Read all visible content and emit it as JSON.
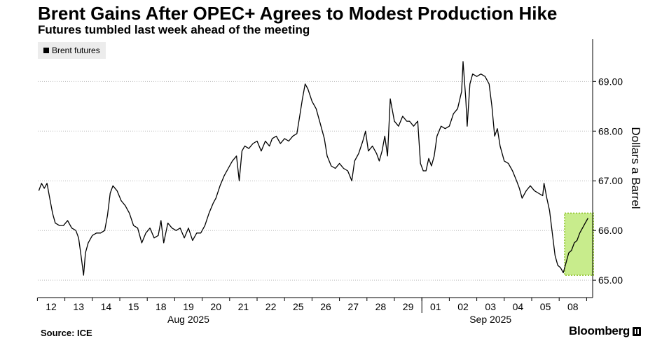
{
  "header": {
    "title": "Brent Gains After OPEC+ Agrees to Modest Production Hike",
    "subtitle": "Futures tumbled last week ahead of the meeting"
  },
  "footer": {
    "source": "Source: ICE",
    "brand": "Bloomberg"
  },
  "colors": {
    "line": "#000000",
    "highlight_fill": "#c8ec8c",
    "highlight_border": "#88c020",
    "grid": "#bbbbbb"
  },
  "chart_data": {
    "type": "line",
    "title": "Brent Gains After OPEC+ Agrees to Modest Production Hike",
    "subtitle": "Futures tumbled last week ahead of the meeting",
    "ylabel": "Dollars a Barrel",
    "ylim": [
      64.65,
      69.85
    ],
    "yticks": [
      65.0,
      66.0,
      67.0,
      68.0,
      69.0
    ],
    "ytick_labels": [
      "65.00",
      "66.00",
      "67.00",
      "68.00",
      "69.00"
    ],
    "grid": "horizontal-dotted",
    "x_categories": [
      "12",
      "13",
      "14",
      "15",
      "18",
      "19",
      "20",
      "21",
      "22",
      "25",
      "26",
      "27",
      "28",
      "29",
      "01",
      "02",
      "03",
      "04",
      "05",
      "08"
    ],
    "month_labels": [
      {
        "label": "Aug 2025",
        "at": "19"
      },
      {
        "label": "Sep 2025",
        "at": "03"
      }
    ],
    "legend": [
      {
        "name": "Brent futures",
        "position": "top-left"
      }
    ],
    "highlight": {
      "x_start": 18.7,
      "x_end": 19.75,
      "y_min": 65.1,
      "y_max": 66.35
    },
    "series": [
      {
        "name": "Brent futures",
        "points": [
          [
            -0.45,
            66.8
          ],
          [
            -0.35,
            66.95
          ],
          [
            -0.25,
            66.85
          ],
          [
            -0.15,
            66.95
          ],
          [
            -0.05,
            66.65
          ],
          [
            0.05,
            66.35
          ],
          [
            0.15,
            66.15
          ],
          [
            0.3,
            66.1
          ],
          [
            0.45,
            66.1
          ],
          [
            0.6,
            66.2
          ],
          [
            0.75,
            66.05
          ],
          [
            0.9,
            66.0
          ],
          [
            1.0,
            65.85
          ],
          [
            1.1,
            65.45
          ],
          [
            1.18,
            65.1
          ],
          [
            1.25,
            65.55
          ],
          [
            1.35,
            65.75
          ],
          [
            1.5,
            65.9
          ],
          [
            1.65,
            65.95
          ],
          [
            1.8,
            65.95
          ],
          [
            1.95,
            66.0
          ],
          [
            2.05,
            66.3
          ],
          [
            2.15,
            66.75
          ],
          [
            2.25,
            66.9
          ],
          [
            2.4,
            66.8
          ],
          [
            2.55,
            66.6
          ],
          [
            2.7,
            66.5
          ],
          [
            2.85,
            66.35
          ],
          [
            3.0,
            66.1
          ],
          [
            3.15,
            66.05
          ],
          [
            3.3,
            65.75
          ],
          [
            3.45,
            65.95
          ],
          [
            3.6,
            66.05
          ],
          [
            3.75,
            65.85
          ],
          [
            3.9,
            65.9
          ],
          [
            4.0,
            66.2
          ],
          [
            4.1,
            65.75
          ],
          [
            4.25,
            66.15
          ],
          [
            4.4,
            66.05
          ],
          [
            4.55,
            66.0
          ],
          [
            4.7,
            66.05
          ],
          [
            4.85,
            65.85
          ],
          [
            5.0,
            66.05
          ],
          [
            5.15,
            65.8
          ],
          [
            5.3,
            65.95
          ],
          [
            5.45,
            65.95
          ],
          [
            5.6,
            66.1
          ],
          [
            5.75,
            66.35
          ],
          [
            5.9,
            66.55
          ],
          [
            6.0,
            66.65
          ],
          [
            6.15,
            66.9
          ],
          [
            6.3,
            67.1
          ],
          [
            6.45,
            67.25
          ],
          [
            6.6,
            67.4
          ],
          [
            6.75,
            67.5
          ],
          [
            6.85,
            67.0
          ],
          [
            6.95,
            67.6
          ],
          [
            7.05,
            67.7
          ],
          [
            7.2,
            67.65
          ],
          [
            7.35,
            67.75
          ],
          [
            7.5,
            67.8
          ],
          [
            7.65,
            67.6
          ],
          [
            7.8,
            67.8
          ],
          [
            7.95,
            67.7
          ],
          [
            8.05,
            67.85
          ],
          [
            8.2,
            67.9
          ],
          [
            8.35,
            67.75
          ],
          [
            8.5,
            67.85
          ],
          [
            8.65,
            67.8
          ],
          [
            8.8,
            67.9
          ],
          [
            8.95,
            67.95
          ],
          [
            9.05,
            68.3
          ],
          [
            9.15,
            68.65
          ],
          [
            9.25,
            68.95
          ],
          [
            9.35,
            68.85
          ],
          [
            9.5,
            68.6
          ],
          [
            9.65,
            68.45
          ],
          [
            9.8,
            68.15
          ],
          [
            9.95,
            67.85
          ],
          [
            10.05,
            67.5
          ],
          [
            10.2,
            67.3
          ],
          [
            10.35,
            67.25
          ],
          [
            10.5,
            67.35
          ],
          [
            10.65,
            67.25
          ],
          [
            10.8,
            67.2
          ],
          [
            10.95,
            67.0
          ],
          [
            11.05,
            67.4
          ],
          [
            11.2,
            67.55
          ],
          [
            11.35,
            67.8
          ],
          [
            11.45,
            68.0
          ],
          [
            11.55,
            67.6
          ],
          [
            11.7,
            67.7
          ],
          [
            11.85,
            67.55
          ],
          [
            11.95,
            67.4
          ],
          [
            12.05,
            67.6
          ],
          [
            12.15,
            67.9
          ],
          [
            12.25,
            67.5
          ],
          [
            12.35,
            68.65
          ],
          [
            12.5,
            68.2
          ],
          [
            12.65,
            68.1
          ],
          [
            12.8,
            68.3
          ],
          [
            12.95,
            68.2
          ],
          [
            13.05,
            68.2
          ],
          [
            13.2,
            68.1
          ],
          [
            13.35,
            68.2
          ],
          [
            13.45,
            67.35
          ],
          [
            13.55,
            67.2
          ],
          [
            13.65,
            67.2
          ],
          [
            13.75,
            67.45
          ],
          [
            13.85,
            67.3
          ],
          [
            13.95,
            67.5
          ],
          [
            14.05,
            67.9
          ],
          [
            14.2,
            68.1
          ],
          [
            14.35,
            68.05
          ],
          [
            14.5,
            68.1
          ],
          [
            14.65,
            68.35
          ],
          [
            14.8,
            68.45
          ],
          [
            14.95,
            68.8
          ],
          [
            15.0,
            69.4
          ],
          [
            15.1,
            68.65
          ],
          [
            15.15,
            68.1
          ],
          [
            15.25,
            68.95
          ],
          [
            15.35,
            69.15
          ],
          [
            15.5,
            69.1
          ],
          [
            15.65,
            69.15
          ],
          [
            15.8,
            69.1
          ],
          [
            15.95,
            68.95
          ],
          [
            16.05,
            68.5
          ],
          [
            16.15,
            67.9
          ],
          [
            16.25,
            68.05
          ],
          [
            16.35,
            67.7
          ],
          [
            16.5,
            67.4
          ],
          [
            16.65,
            67.35
          ],
          [
            16.8,
            67.2
          ],
          [
            16.95,
            67.0
          ],
          [
            17.05,
            66.85
          ],
          [
            17.15,
            66.65
          ],
          [
            17.3,
            66.8
          ],
          [
            17.45,
            66.9
          ],
          [
            17.6,
            66.8
          ],
          [
            17.75,
            66.75
          ],
          [
            17.9,
            66.7
          ],
          [
            17.95,
            66.95
          ],
          [
            18.05,
            66.65
          ],
          [
            18.15,
            66.4
          ],
          [
            18.25,
            65.95
          ],
          [
            18.35,
            65.5
          ],
          [
            18.45,
            65.3
          ],
          [
            18.55,
            65.25
          ],
          [
            18.65,
            65.15
          ],
          [
            18.75,
            65.35
          ],
          [
            18.85,
            65.55
          ],
          [
            18.95,
            65.6
          ],
          [
            19.05,
            65.75
          ],
          [
            19.15,
            65.8
          ],
          [
            19.25,
            65.95
          ],
          [
            19.35,
            66.05
          ],
          [
            19.45,
            66.15
          ],
          [
            19.55,
            66.25
          ]
        ]
      }
    ]
  }
}
